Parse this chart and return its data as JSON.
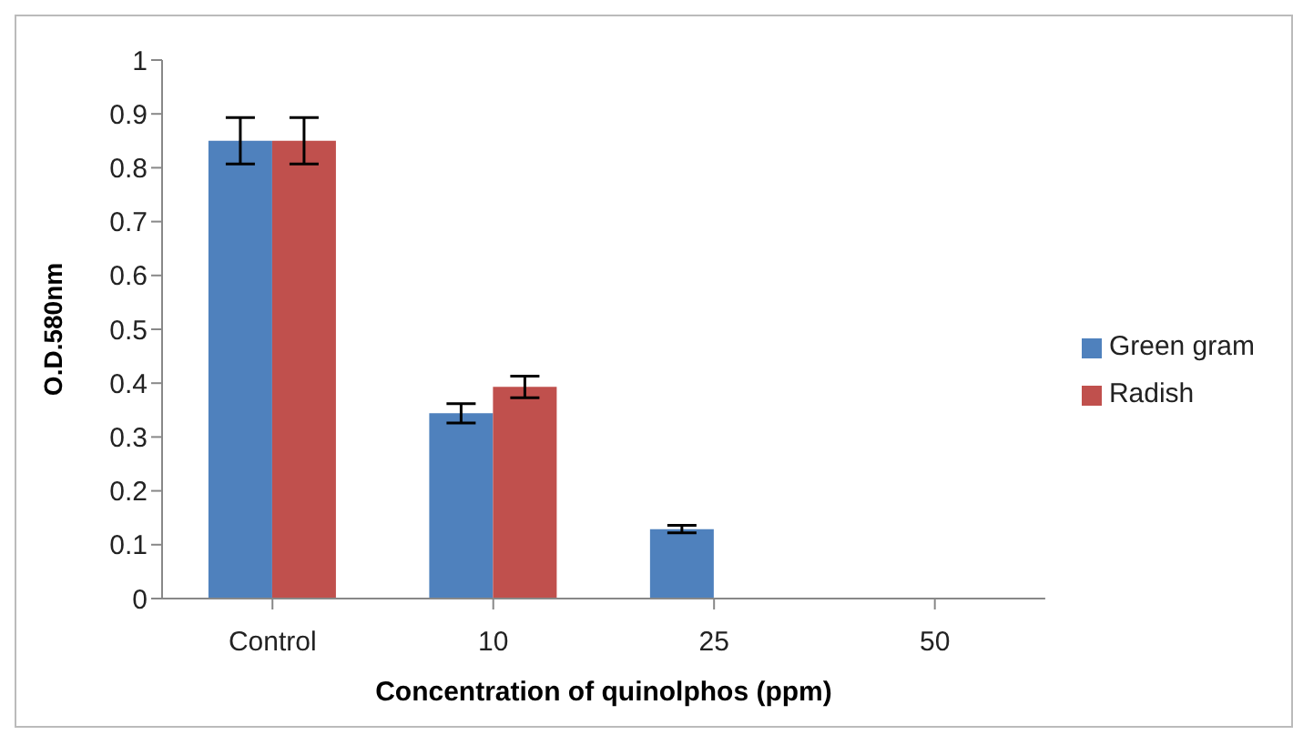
{
  "chart_data": {
    "type": "bar",
    "xlabel": "Concentration of quinolphos (ppm)",
    "ylabel": "O.D.580nm",
    "categories": [
      "Control",
      "10",
      "25",
      "50"
    ],
    "series": [
      {
        "name": "Green gram",
        "color": "#4f81bd",
        "values": [
          0.85,
          0.344,
          0.129,
          0
        ],
        "errors": [
          0.043,
          0.018,
          0.007,
          null
        ]
      },
      {
        "name": "Radish",
        "color": "#c0504d",
        "values": [
          0.85,
          0.393,
          0,
          0
        ],
        "errors": [
          0.043,
          0.02,
          null,
          null
        ]
      }
    ],
    "ylim": [
      0,
      1
    ],
    "yticks": [
      0,
      0.1,
      0.2,
      0.3,
      0.4,
      0.5,
      0.6,
      0.7,
      0.8,
      0.9,
      1
    ],
    "grid": false,
    "legend": "right"
  }
}
